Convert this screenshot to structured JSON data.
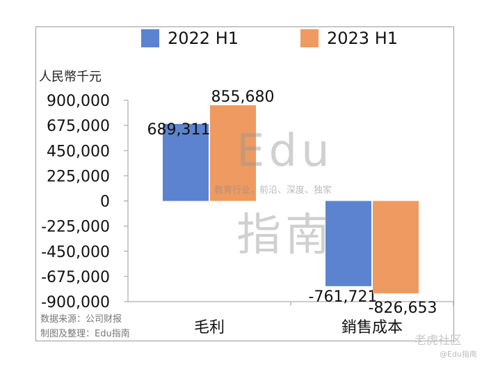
{
  "chart_data": {
    "type": "bar",
    "unit_label": "人民幣千元",
    "categories": [
      "毛利",
      "銷售成本"
    ],
    "series": [
      {
        "name": "2022 H1",
        "color": "#5b83cf",
        "values": [
          689311,
          -761721
        ]
      },
      {
        "name": "2023 H1",
        "color": "#ef9a60",
        "values": [
          855680,
          -826653
        ]
      }
    ],
    "data_labels": {
      "2022 H1": [
        "689,311",
        "-761,721"
      ],
      "2023 H1": [
        "855,680",
        "-826,653"
      ]
    },
    "ylim": [
      -900000,
      900000
    ],
    "yticks": [
      900000,
      675000,
      450000,
      225000,
      0,
      -225000,
      -450000,
      -675000,
      -900000
    ],
    "ytick_labels": [
      "900,000",
      "675,000",
      "450,000",
      "225,000",
      "0",
      "-225,000",
      "-450,000",
      "-675,000",
      "-900,000"
    ],
    "grid": false,
    "legend": "top"
  },
  "notes": {
    "source": "数据来源：公司财报",
    "compiled": "制图及整理：Edu指南"
  },
  "watermark": {
    "brand": "Edu",
    "brand_cn": "指南",
    "tagline": "教育行业，前沿、深度、独家",
    "site": "老虎社区",
    "handle": "@Edu指南"
  }
}
